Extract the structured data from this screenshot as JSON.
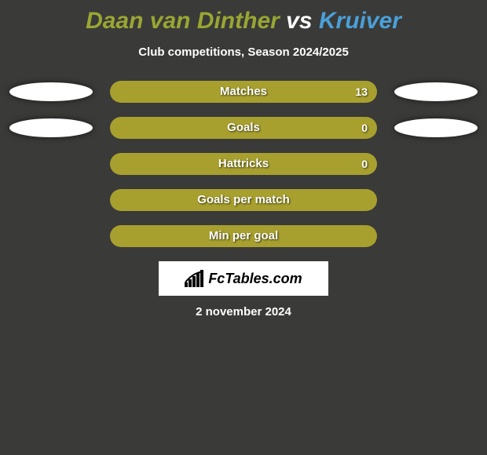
{
  "title": {
    "parts": [
      {
        "text": "Daan van Dinther",
        "color": "#99a633"
      },
      {
        "text": " vs ",
        "color": "#ffffff"
      },
      {
        "text": "Kruiver",
        "color": "#4aa0d8"
      }
    ],
    "fontsize": 30
  },
  "subtitle": "Club competitions, Season 2024/2025",
  "bar_track_width": 340,
  "bar_track_height": 28,
  "bar_color": "#a8a02e",
  "background_color": "#3a3a38",
  "ellipse_color": "#ffffff",
  "rows": [
    {
      "label": "Matches",
      "value_text": "13",
      "left_fill_pct": 100,
      "right_fill_pct": 100,
      "show_left_ellipse": true,
      "show_right_ellipse": true,
      "show_value": true
    },
    {
      "label": "Goals",
      "value_text": "0",
      "left_fill_pct": 100,
      "right_fill_pct": 100,
      "show_left_ellipse": true,
      "show_right_ellipse": true,
      "show_value": true
    },
    {
      "label": "Hattricks",
      "value_text": "0",
      "left_fill_pct": 100,
      "right_fill_pct": 100,
      "show_left_ellipse": false,
      "show_right_ellipse": false,
      "show_value": true
    },
    {
      "label": "Goals per match",
      "value_text": "",
      "left_fill_pct": 100,
      "right_fill_pct": 100,
      "show_left_ellipse": false,
      "show_right_ellipse": false,
      "show_value": false
    },
    {
      "label": "Min per goal",
      "value_text": "",
      "left_fill_pct": 100,
      "right_fill_pct": 100,
      "show_left_ellipse": false,
      "show_right_ellipse": false,
      "show_value": false
    }
  ],
  "logo_text": "FcTables.com",
  "date": "2 november 2024"
}
